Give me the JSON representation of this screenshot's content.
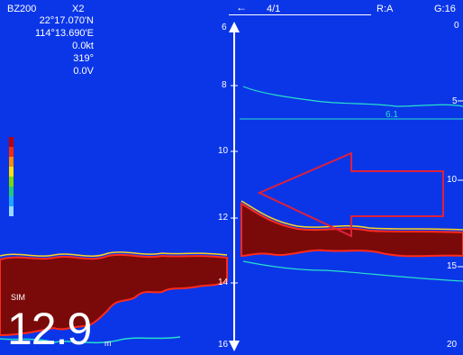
{
  "status_bar": {
    "device": "BZ200",
    "zoom": "X2",
    "range_arrow": "←",
    "range": "4/1",
    "mode": "R:A",
    "gain": "G:16"
  },
  "nav_readout": {
    "latitude": "22°17.070'N",
    "longitude": "114°13.690'E",
    "speed": "0.0kt",
    "heading": "319°",
    "voltage": "0.0V"
  },
  "mode_label": "SIM",
  "depth": {
    "value": "12.9",
    "unit": "m"
  },
  "center_scale": [
    "6",
    "8",
    "10",
    "12",
    "14",
    "16"
  ],
  "right_scale": [
    "0",
    "5",
    "10",
    "15",
    "20"
  ],
  "thermocline_label": "6.1",
  "colors": {
    "background": "#0b36e8",
    "bottom_echo": "#7a0a0a",
    "echo_edge": "#ff2a1a",
    "echo_fringe": "#ffd21e",
    "weak_echo": "#27e0c8",
    "annotation_arrow": "#e0203a",
    "gain_scale": [
      "#c00000",
      "#ff2a00",
      "#ff8c00",
      "#ffe000",
      "#7ad800",
      "#22c87a",
      "#1aa8ff",
      "#9ad8ff"
    ]
  },
  "icons": [
    "arrow-left-icon",
    "arrow-up-icon",
    "arrow-down-icon",
    "annotation-arrow-icon"
  ]
}
